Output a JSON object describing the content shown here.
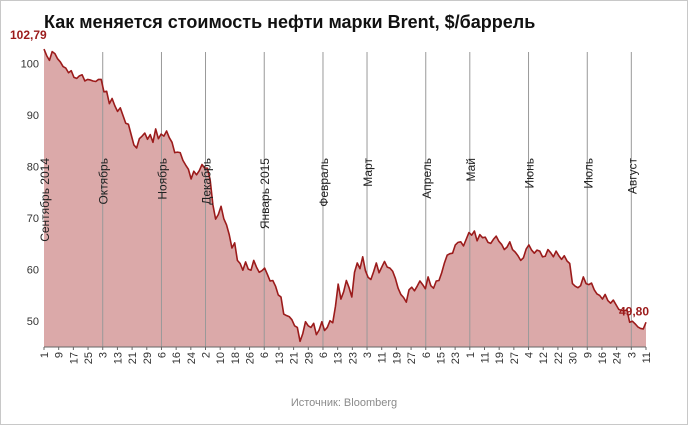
{
  "title": "Как меняется стоимость нефти марки Brent, $/баррель",
  "source": "Источник: Bloomberg",
  "colors": {
    "line": "#9b1b1b",
    "fill": "#dba9a9",
    "grid": "#999999",
    "label": "#9b1b1b"
  },
  "chart_data": {
    "type": "area",
    "title": "Как меняется стоимость нефти марки Brent, $/баррель",
    "xlabel": "",
    "ylabel": "",
    "ylim": [
      45,
      103
    ],
    "y_ticks": [
      50,
      60,
      70,
      80,
      90,
      100
    ],
    "grid": true,
    "x_tick_labels": [
      "1",
      "9",
      "17",
      "25",
      "3",
      "13",
      "21",
      "29",
      "6",
      "16",
      "24",
      "2",
      "10",
      "18",
      "26",
      "6",
      "13",
      "21",
      "29",
      "6",
      "13",
      "23",
      "3",
      "11",
      "19",
      "27",
      "6",
      "15",
      "23",
      "1",
      "11",
      "19",
      "27",
      "4",
      "12",
      "22",
      "30",
      "9",
      "16",
      "24",
      "3",
      "11"
    ],
    "months": [
      {
        "label": "Сентябрь 2014",
        "tick_index": 0
      },
      {
        "label": "Октябрь",
        "tick_index": 4
      },
      {
        "label": "Ноябрь",
        "tick_index": 8
      },
      {
        "label": "Декабрь",
        "tick_index": 11
      },
      {
        "label": "Январь 2015",
        "tick_index": 15
      },
      {
        "label": "Февраль",
        "tick_index": 19
      },
      {
        "label": "Март",
        "tick_index": 22
      },
      {
        "label": "Апрель",
        "tick_index": 26
      },
      {
        "label": "Май",
        "tick_index": 29
      },
      {
        "label": "Июнь",
        "tick_index": 33
      },
      {
        "label": "Июль",
        "tick_index": 37
      },
      {
        "label": "Август",
        "tick_index": 40
      }
    ],
    "series": [
      {
        "name": "",
        "values": [
          102.79,
          101.5,
          100.6,
          102.3,
          101.9,
          100.9,
          100.3,
          99.4,
          99.1,
          98.2,
          98.6,
          97.3,
          97.1,
          97.6,
          97.8,
          96.6,
          96.9,
          96.8,
          96.6,
          96.5,
          96.9,
          96.9,
          94.5,
          94.6,
          92.2,
          93.2,
          91.8,
          90.7,
          91.4,
          89.9,
          88.4,
          88.2,
          86.2,
          84.2,
          83.6,
          85.4,
          85.9,
          86.5,
          85.3,
          86.2,
          84.7,
          87.3,
          85.4,
          86.3,
          85.9,
          86.9,
          85.6,
          84.7,
          82.7,
          82.8,
          82.7,
          81.2,
          80.3,
          79.5,
          77.6,
          79.1,
          78.4,
          79.2,
          80.4,
          79.7,
          79.7,
          77.4,
          72.6,
          69.8,
          70.7,
          72.3,
          69.9,
          68.7,
          66.8,
          64.2,
          65.2,
          61.8,
          61.2,
          59.9,
          61.5,
          60.1,
          59.9,
          61.8,
          60.5,
          59.5,
          59.8,
          60.3,
          59.1,
          57.8,
          57.9,
          56.8,
          55.1,
          54.7,
          51.4,
          51.1,
          50.9,
          50.3,
          49.1,
          48.8,
          46.1,
          47.6,
          49.9,
          49.1,
          48.8,
          49.6,
          47.4,
          48.3,
          49.9,
          48.2,
          48.8,
          50.1,
          49.7,
          52.9,
          57.2,
          54.3,
          55.7,
          57.9,
          56.5,
          54.7,
          59.5,
          61.3,
          60.2,
          62.5,
          59.8,
          58.5,
          58.1,
          59.6,
          61.3,
          59.4,
          60.5,
          61.6,
          60.5,
          60.3,
          59.7,
          58.3,
          56.4,
          55.2,
          54.6,
          53.7,
          56.1,
          56.6,
          55.9,
          56.8,
          57.8,
          57.1,
          56.3,
          58.6,
          56.9,
          56.4,
          57.8,
          57.9,
          59.4,
          61.3,
          62.8,
          63.1,
          63.2,
          64.8,
          65.3,
          65.4,
          64.6,
          65.9,
          67.2,
          66.7,
          67.5,
          65.6,
          66.8,
          66.2,
          66.3,
          65.3,
          65.1,
          65.9,
          66.5,
          65.5,
          64.9,
          63.9,
          64.4,
          65.4,
          63.9,
          63.4,
          62.7,
          61.8,
          62.3,
          64.0,
          64.8,
          63.8,
          63.2,
          63.8,
          63.6,
          62.5,
          62.6,
          63.9,
          63.3,
          62.5,
          63.6,
          62.7,
          62.0,
          62.7,
          61.7,
          61.2,
          57.3,
          56.8,
          56.5,
          56.9,
          58.6,
          57.3,
          57.1,
          57.4,
          56.1,
          55.3,
          55.0,
          54.3,
          55.2,
          54.0,
          53.5,
          54.1,
          53.2,
          52.3,
          52.1,
          52.0,
          52.2,
          49.8,
          50.0,
          49.5,
          48.9,
          48.6,
          48.5,
          49.8
        ]
      }
    ],
    "annotations": [
      {
        "text": "102,79",
        "point": "first"
      },
      {
        "text": "49,80",
        "point": "last"
      }
    ]
  }
}
